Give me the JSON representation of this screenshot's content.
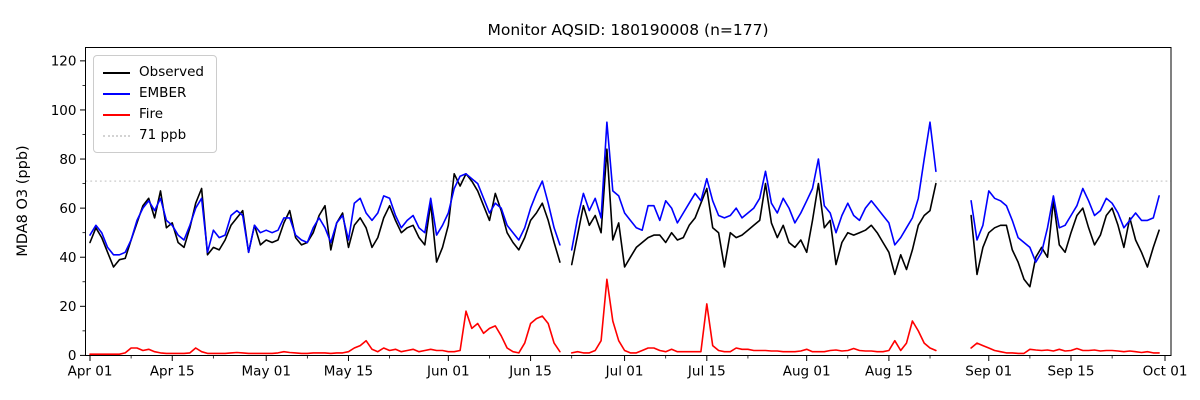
{
  "title": "Monitor AQSID: 180190008 (n=177)",
  "legend": {
    "items": [
      {
        "label": "Observed",
        "color": "#000000",
        "dash": "solid"
      },
      {
        "label": "EMBER",
        "color": "#0000ff",
        "dash": "solid"
      },
      {
        "label": "Fire",
        "color": "#ff0000",
        "dash": "solid"
      },
      {
        "label": "71 ppb",
        "color": "#d3d3d3",
        "dash": "dotted"
      }
    ]
  },
  "chart_data": {
    "type": "line",
    "title": "Monitor AQSID: 180190008 (n=177)",
    "xlabel": "",
    "ylabel": "MDA8 O3 (ppb)",
    "ylim": [
      0,
      125.5
    ],
    "grid": false,
    "legend_position": "upper-left",
    "x_unit": "daily values, day index 0 = Apr 01 through day 182 = Sep 30; gaps (null) = missing monitor days",
    "x_ticks": [
      {
        "day": 0,
        "label": "Apr 01"
      },
      {
        "day": 14,
        "label": "Apr 15"
      },
      {
        "day": 30,
        "label": "May 01"
      },
      {
        "day": 44,
        "label": "May 15"
      },
      {
        "day": 61,
        "label": "Jun 01"
      },
      {
        "day": 75,
        "label": "Jun 15"
      },
      {
        "day": 91,
        "label": "Jul 01"
      },
      {
        "day": 105,
        "label": "Jul 15"
      },
      {
        "day": 122,
        "label": "Aug 01"
      },
      {
        "day": 136,
        "label": "Aug 15"
      },
      {
        "day": 153,
        "label": "Sep 01"
      },
      {
        "day": 167,
        "label": "Sep 15"
      },
      {
        "day": 183,
        "label": "Oct 01"
      }
    ],
    "x_minor_tick_days": [
      7,
      21,
      37,
      51,
      68,
      82,
      98,
      112,
      129,
      143,
      160,
      174
    ],
    "y_ticks": [
      0,
      20,
      40,
      60,
      80,
      100,
      120
    ],
    "y_minor_ticks": [
      10,
      30,
      50,
      70,
      90,
      110
    ],
    "ref_line": {
      "value": 71,
      "label": "71 ppb",
      "color": "#d3d3d3",
      "style": "dotted"
    },
    "series": [
      {
        "name": "Observed",
        "color": "#000000",
        "values": [
          46,
          52,
          48,
          42,
          36,
          39,
          39.5,
          47,
          54,
          61,
          64,
          56,
          67,
          52,
          54,
          46,
          44,
          52,
          62,
          68,
          41,
          44,
          43,
          47,
          53,
          56,
          59,
          42,
          53,
          45,
          47,
          46,
          47,
          54,
          59,
          48,
          45,
          46,
          50,
          57,
          61,
          43,
          54,
          58,
          44,
          53,
          56,
          52,
          44,
          48,
          56,
          61,
          55,
          50,
          52,
          53,
          48,
          45,
          62,
          38,
          44,
          53,
          74,
          69,
          74,
          71,
          67,
          61,
          55,
          66,
          59,
          50,
          46,
          43,
          48,
          55,
          58,
          62,
          55,
          46,
          38,
          null,
          37,
          49,
          61,
          53,
          57,
          50,
          84,
          47,
          54,
          36,
          40,
          44,
          46,
          48,
          49,
          49,
          46,
          50,
          47,
          48,
          53,
          56,
          62,
          68,
          52,
          50,
          36,
          50,
          48,
          49,
          51,
          53,
          55,
          70,
          54,
          48,
          53,
          46,
          44,
          47,
          42,
          55,
          70,
          52,
          55,
          37,
          46,
          50,
          49,
          50,
          51,
          53,
          50,
          46,
          42,
          33,
          41,
          35,
          43,
          53,
          57,
          59,
          70,
          null,
          null,
          null,
          null,
          null,
          57,
          33,
          44,
          50,
          52,
          53,
          53,
          43,
          38,
          31,
          28,
          40,
          44,
          40,
          63,
          45,
          42,
          50,
          57,
          60,
          52,
          45,
          49,
          57,
          60,
          53,
          44,
          56,
          47,
          42,
          36,
          44,
          51
        ]
      },
      {
        "name": "EMBER",
        "color": "#0000ff",
        "values": [
          49,
          53,
          50,
          44,
          41,
          41,
          42,
          47,
          55,
          60,
          63,
          59,
          64,
          55,
          53,
          49,
          47,
          53,
          60,
          64,
          42,
          51,
          48,
          49,
          57,
          59,
          57,
          42,
          53,
          50,
          51,
          50,
          51,
          56,
          56,
          49,
          47,
          46,
          52,
          56,
          52,
          46,
          54,
          57,
          47,
          62,
          64,
          58,
          55,
          58,
          65,
          64,
          57,
          52,
          55,
          57,
          52,
          50,
          64,
          49,
          53,
          58,
          68,
          73,
          74,
          72,
          70,
          64,
          58,
          62,
          60,
          53,
          50,
          47,
          52,
          60,
          66,
          71,
          62,
          52,
          45,
          null,
          43,
          56,
          66,
          59,
          64,
          56,
          95,
          67,
          65,
          58,
          55,
          52,
          51,
          61,
          61,
          55,
          63,
          60,
          54,
          58,
          62,
          66,
          63,
          72,
          63,
          57,
          56,
          57,
          60,
          56,
          58,
          60,
          64,
          75,
          62,
          58,
          64,
          60,
          54,
          58,
          63,
          68,
          80,
          61,
          58,
          50,
          57,
          62,
          57,
          55,
          60,
          63,
          60,
          57,
          54,
          45,
          48,
          52,
          56,
          64,
          80,
          95,
          75,
          null,
          null,
          null,
          null,
          null,
          63,
          47,
          53,
          67,
          64,
          63,
          61,
          55,
          48,
          46,
          44,
          38,
          42,
          52,
          65,
          52,
          53,
          57,
          61,
          68,
          63,
          57,
          59,
          64,
          62,
          58,
          52,
          55,
          58,
          55,
          55,
          56,
          65
        ]
      },
      {
        "name": "Fire",
        "color": "#ff0000",
        "values": [
          0.5,
          0.5,
          0.5,
          0.5,
          0.5,
          0.5,
          1,
          3,
          3,
          2,
          2.5,
          1.5,
          1,
          0.8,
          0.8,
          0.8,
          0.8,
          1,
          3,
          1.5,
          0.8,
          0.8,
          0.8,
          0.8,
          1,
          1.2,
          1,
          0.8,
          0.8,
          0.8,
          0.8,
          0.8,
          1,
          1.5,
          1.2,
          1,
          0.8,
          0.8,
          1,
          1,
          1,
          0.8,
          1,
          1,
          1.5,
          3,
          4,
          6,
          2.5,
          1.5,
          3,
          2,
          2.5,
          1.5,
          2,
          2.5,
          1.5,
          2,
          2.5,
          2,
          2,
          1.5,
          1.5,
          2,
          18,
          11,
          13,
          9,
          11,
          12,
          8,
          3,
          1.5,
          1,
          5,
          13,
          15,
          16,
          13,
          5,
          1.5,
          null,
          1,
          1.5,
          1,
          1,
          2,
          6,
          31,
          14,
          6,
          2,
          1,
          1,
          2,
          3,
          3,
          2,
          1.5,
          2.5,
          1.5,
          1.5,
          1.5,
          1.5,
          1.5,
          21,
          4,
          2,
          1.5,
          1.5,
          3,
          2.5,
          2.5,
          2,
          2,
          2,
          1.8,
          1.8,
          1.5,
          1.5,
          1.5,
          1.8,
          2.5,
          1.5,
          1.5,
          1.5,
          2,
          2.2,
          1.8,
          2,
          2.8,
          2,
          1.8,
          1.8,
          1.5,
          1.5,
          2,
          6,
          2,
          5,
          14,
          10,
          5,
          3,
          2,
          null,
          null,
          null,
          null,
          null,
          3,
          5,
          4,
          3,
          2,
          1.5,
          1,
          1,
          0.8,
          0.8,
          2.5,
          2.2,
          2,
          2.2,
          1.8,
          2.5,
          1.8,
          2,
          2.8,
          2,
          2,
          2.2,
          1.8,
          2,
          2,
          1.8,
          1.5,
          1.8,
          1.5,
          1.2,
          1.5,
          1,
          1
        ]
      }
    ]
  }
}
